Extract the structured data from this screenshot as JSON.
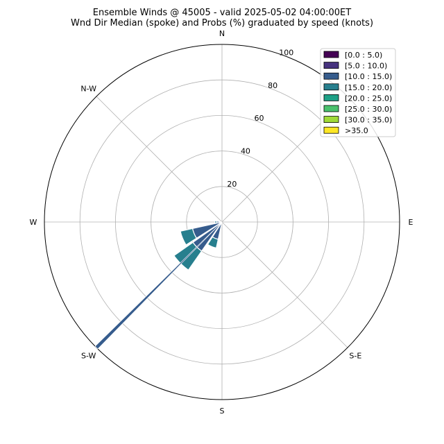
{
  "chart_data": {
    "type": "windrose",
    "title": "Ensemble Winds @ 45005 - valid 2025-05-02 04:00:00ET",
    "subtitle": "Wnd Dir Median (spoke) and Probs (%) graduated by speed (knots)",
    "direction_labels": [
      "N",
      "E",
      "S",
      "W",
      "N-W",
      "S-E",
      "S-W"
    ],
    "radial_ticks": [
      20,
      40,
      60,
      80,
      100
    ],
    "rlim": [
      0,
      100
    ],
    "grid": true,
    "legend_position": "top-right",
    "median_spoke": {
      "direction_deg": 225,
      "value": 100
    },
    "speed_bins": [
      {
        "name": "[0.0 : 5.0)",
        "color": "#440154"
      },
      {
        "name": "[5.0 : 10.0)",
        "color": "#46327e"
      },
      {
        "name": "[10.0 : 15.0)",
        "color": "#365c8d"
      },
      {
        "name": "[15.0 : 20.0)",
        "color": "#277f8e"
      },
      {
        "name": "[20.0 : 25.0)",
        "color": "#1fa187"
      },
      {
        "name": "[25.0 : 30.0)",
        "color": "#4ac16d"
      },
      {
        "name": "[30.0 : 35.0)",
        "color": "#a0da39"
      },
      {
        "name": ">35.0",
        "color": "#fde725"
      }
    ],
    "sectors": [
      {
        "direction_deg": 270,
        "values": [
          0,
          0,
          3,
          1
        ]
      },
      {
        "direction_deg": 247.5,
        "values": [
          0,
          0,
          17,
          7
        ]
      },
      {
        "direction_deg": 225,
        "values": [
          0,
          0,
          20,
          13
        ]
      },
      {
        "direction_deg": 202.5,
        "values": [
          0,
          0,
          10,
          5
        ]
      }
    ]
  }
}
